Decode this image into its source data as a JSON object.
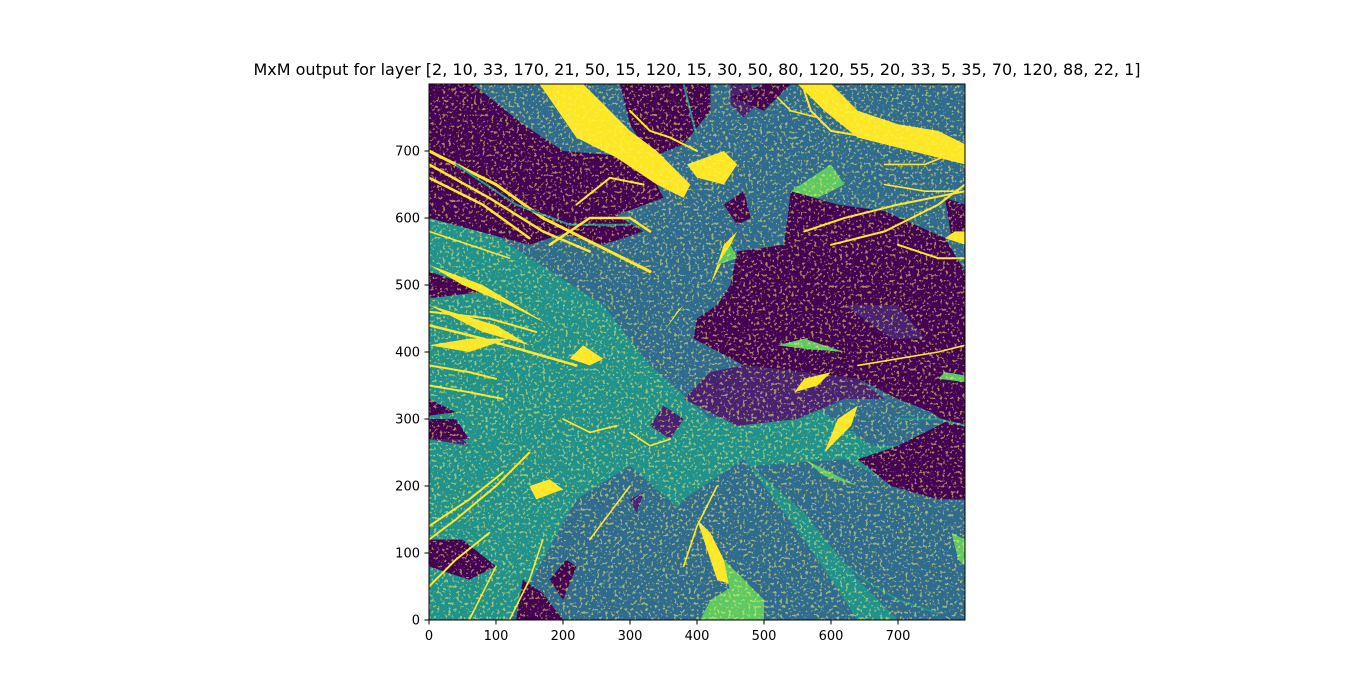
{
  "chart_data": {
    "type": "heatmap",
    "title": "MxM output for layer [2, 10, 33, 170, 21, 50, 15, 120, 15, 30, 50, 80, 120, 55, 20, 33, 5, 35, 70, 120, 88, 22, 1]",
    "xlabel": "",
    "ylabel": "",
    "xlim": [
      0,
      800
    ],
    "ylim": [
      0,
      800
    ],
    "x_ticks": [
      0,
      100,
      200,
      300,
      400,
      500,
      600,
      700
    ],
    "y_ticks": [
      0,
      100,
      200,
      300,
      400,
      500,
      600,
      700
    ],
    "grid": false,
    "colormap": "viridis",
    "legend": "none",
    "colors": {
      "dark_purple": "#440154",
      "purple": "#482173",
      "blue": "#2f6b8e",
      "teal": "#21918c",
      "green": "#5ec962",
      "yellow": "#fde725"
    }
  }
}
